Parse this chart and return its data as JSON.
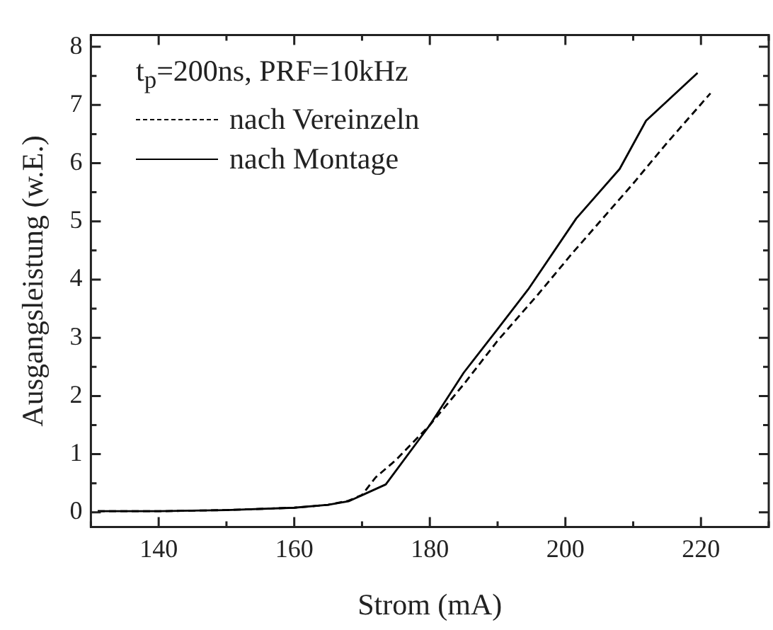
{
  "chart_data": {
    "type": "line",
    "xlabel": "Strom (mA)",
    "ylabel": "Ausgangsleistung (w.E.)",
    "legend_title": "t$_{p}$=200ns, PRF=10kHz",
    "legend": "top left",
    "marker": "none",
    "xlim": [
      130,
      230
    ],
    "xticks": [
      140,
      160,
      180,
      200,
      220
    ],
    "ylim": [
      -0.25,
      8.2
    ],
    "yticks": [
      0,
      1,
      2,
      3,
      4,
      5,
      6,
      7,
      8
    ],
    "series": [
      {
        "name": "nach Vereinzeln",
        "color": "#000000",
        "line_style": "dashed",
        "x": [
          131,
          140,
          150,
          160,
          165,
          168,
          170,
          172,
          175,
          180,
          185,
          190,
          196,
          201,
          210,
          215,
          221.4
        ],
        "values": [
          0.02,
          0.02,
          0.04,
          0.08,
          0.13,
          0.2,
          0.3,
          0.6,
          0.9,
          1.5,
          2.2,
          2.95,
          3.75,
          4.45,
          5.65,
          6.35,
          7.2
        ]
      },
      {
        "name": "nach Montage",
        "color": "#000000",
        "line_style": "solid",
        "x": [
          131,
          140,
          150,
          160,
          165,
          168,
          173.5,
          180,
          185,
          190,
          194.5,
          201.6,
          208,
          211.9,
          219.5
        ],
        "values": [
          0.02,
          0.02,
          0.04,
          0.08,
          0.13,
          0.19,
          0.48,
          1.5,
          2.4,
          3.15,
          3.83,
          5.05,
          5.9,
          6.73,
          7.55
        ]
      }
    ]
  }
}
